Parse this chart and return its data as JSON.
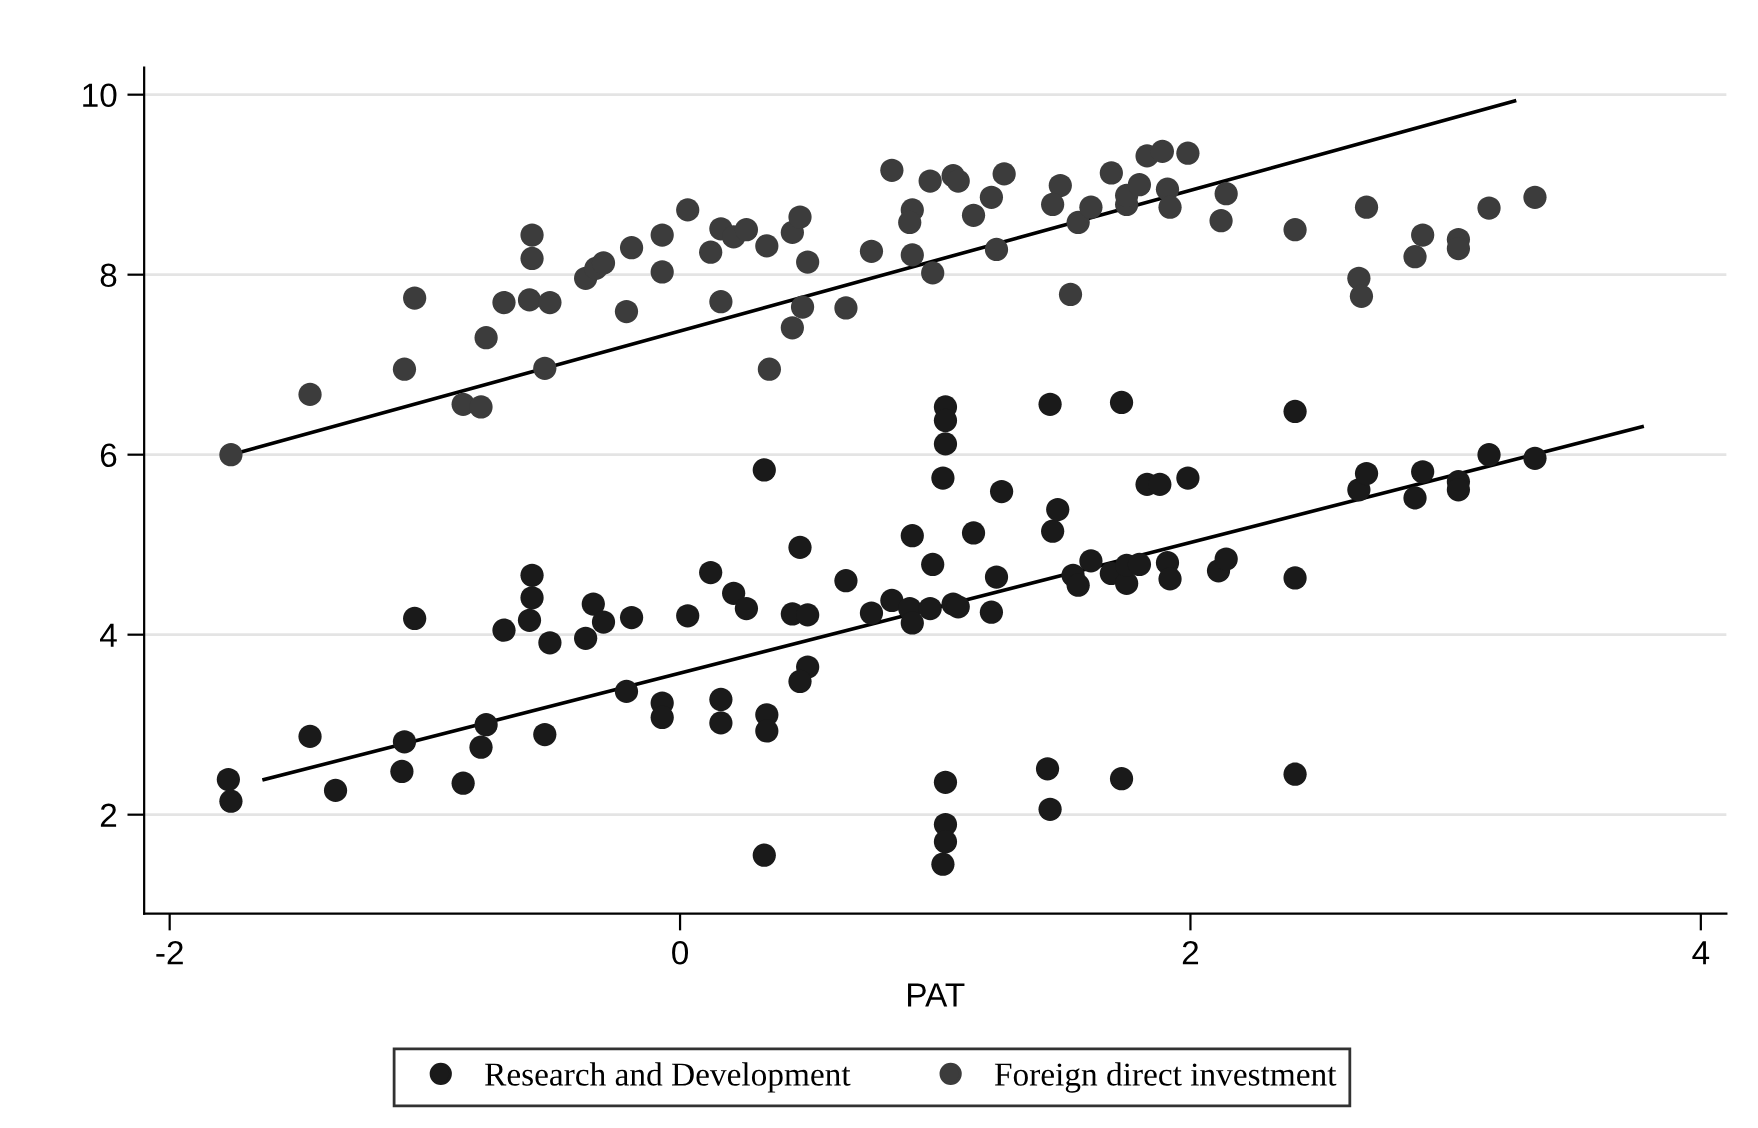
{
  "chart_data": {
    "type": "scatter",
    "xlabel": "PAT",
    "xlim": [
      -2.1,
      4.1
    ],
    "ylim": [
      0.9,
      10.3
    ],
    "xticks": [
      -2,
      0,
      2,
      4
    ],
    "yticks": [
      2,
      4,
      6,
      8,
      10
    ],
    "grid": "y",
    "legend": "bottom",
    "marker": "circle",
    "series": [
      {
        "name": "Research and Development",
        "color": "#1a1a1a",
        "x": [
          -1.77,
          -1.76,
          -1.45,
          -1.35,
          -1.08,
          -1.09,
          -1.04,
          -0.85,
          -0.76,
          -0.78,
          -0.69,
          -0.58,
          -0.58,
          -0.59,
          -0.51,
          -0.53,
          -0.37,
          -0.34,
          -0.3,
          -0.21,
          -0.19,
          -0.07,
          -0.07,
          0.03,
          0.12,
          0.16,
          0.16,
          0.21,
          0.26,
          0.34,
          0.34,
          0.33,
          0.33,
          0.44,
          0.5,
          0.47,
          0.5,
          0.47,
          0.65,
          0.75,
          0.83,
          0.91,
          0.9,
          0.91,
          0.99,
          0.98,
          1.07,
          1.09,
          1.03,
          1.04,
          1.04,
          1.04,
          1.04,
          1.04,
          1.04,
          1.03,
          1.15,
          1.22,
          1.24,
          1.26,
          1.46,
          1.48,
          1.45,
          1.54,
          1.56,
          1.61,
          1.69,
          1.73,
          1.75,
          1.75,
          1.8,
          1.83,
          1.88,
          1.91,
          1.92,
          1.99,
          2.11,
          2.14,
          2.41,
          2.41,
          2.66,
          2.69,
          2.88,
          2.91,
          3.05,
          3.05,
          3.17,
          3.35,
          1.44,
          1.45,
          1.73,
          2.41
        ],
        "values": [
          2.39,
          2.15,
          2.87,
          2.27,
          2.81,
          2.48,
          4.18,
          2.35,
          3.0,
          2.75,
          4.05,
          4.66,
          4.41,
          4.16,
          3.91,
          2.89,
          3.96,
          4.34,
          4.14,
          3.37,
          4.19,
          3.24,
          3.08,
          4.21,
          4.69,
          3.28,
          3.02,
          4.46,
          4.29,
          3.11,
          2.93,
          1.55,
          5.83,
          4.23,
          4.22,
          4.97,
          3.64,
          3.48,
          4.6,
          4.24,
          4.38,
          5.1,
          4.29,
          4.13,
          4.78,
          4.29,
          4.34,
          4.31,
          5.74,
          6.53,
          6.38,
          6.12,
          2.36,
          1.89,
          1.7,
          1.45,
          5.13,
          4.25,
          4.64,
          5.59,
          5.15,
          5.39,
          6.56,
          4.66,
          4.55,
          4.82,
          4.68,
          6.58,
          4.57,
          4.77,
          4.78,
          5.67,
          5.67,
          4.8,
          4.62,
          5.74,
          4.71,
          4.84,
          4.63,
          6.48,
          5.61,
          5.79,
          5.52,
          5.81,
          5.7,
          5.61,
          6.0,
          5.96,
          2.51,
          2.06,
          2.4,
          2.45
        ]
      },
      {
        "name": "Foreign direct investment",
        "color": "#3c3c3c",
        "x": [
          -1.76,
          -1.45,
          -1.08,
          -1.04,
          -0.85,
          -0.78,
          -0.76,
          -0.69,
          -0.58,
          -0.58,
          -0.59,
          -0.51,
          -0.53,
          -0.37,
          -0.33,
          -0.3,
          -0.21,
          -0.19,
          -0.07,
          -0.07,
          0.03,
          0.12,
          0.16,
          0.16,
          0.21,
          0.26,
          0.34,
          0.35,
          0.44,
          0.47,
          0.5,
          0.48,
          0.44,
          0.65,
          0.75,
          0.83,
          0.91,
          0.9,
          0.91,
          0.98,
          0.99,
          1.07,
          1.09,
          1.27,
          1.22,
          1.15,
          1.24,
          1.53,
          1.49,
          1.46,
          1.56,
          1.61,
          1.69,
          1.75,
          1.75,
          1.8,
          1.83,
          1.89,
          1.99,
          1.91,
          1.92,
          2.14,
          2.12,
          2.41,
          2.69,
          2.66,
          2.67,
          2.91,
          2.88,
          3.05,
          3.05,
          3.17,
          3.35
        ],
        "values": [
          6.0,
          6.67,
          6.95,
          7.74,
          6.56,
          6.53,
          7.3,
          7.69,
          8.44,
          8.18,
          7.72,
          7.69,
          6.96,
          7.96,
          8.07,
          8.13,
          7.59,
          8.3,
          8.44,
          8.03,
          8.72,
          8.25,
          8.51,
          7.7,
          8.42,
          8.5,
          8.32,
          6.95,
          8.47,
          8.64,
          8.14,
          7.64,
          7.41,
          7.63,
          8.26,
          9.16,
          8.72,
          8.58,
          8.22,
          9.04,
          8.02,
          9.1,
          9.04,
          9.12,
          8.86,
          8.66,
          8.28,
          7.78,
          8.99,
          8.78,
          8.58,
          8.75,
          9.13,
          8.78,
          8.88,
          9.0,
          9.32,
          9.37,
          9.35,
          8.95,
          8.75,
          8.9,
          8.6,
          8.5,
          8.75,
          7.96,
          7.76,
          8.44,
          8.2,
          8.39,
          8.29,
          8.74,
          8.86
        ]
      },
      {
        "type": "line",
        "color": "#000000",
        "marker": "none",
        "x": [
          -1.63,
          3.77
        ],
        "values": [
          2.39,
          6.31
        ]
      },
      {
        "type": "line",
        "color": "#000000",
        "marker": "none",
        "x": [
          -1.76,
          3.27
        ],
        "values": [
          6.0,
          9.93
        ]
      }
    ]
  }
}
